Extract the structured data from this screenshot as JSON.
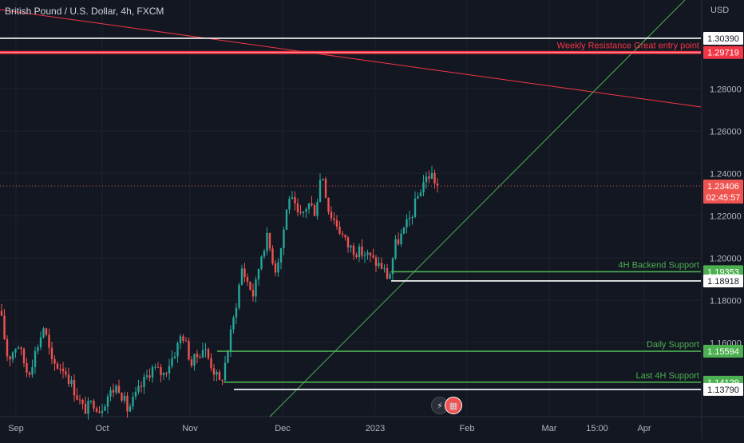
{
  "header": {
    "title": "British Pound / U.S. Dollar, 4h, FXCM",
    "currency": "USD"
  },
  "toolbar": {
    "flash_icon": "lightning-icon",
    "calendar_icon": "economic-calendar-icon"
  },
  "chart_data": {
    "type": "candlestick",
    "y_axis": {
      "ylim": [
        1.125,
        1.322
      ],
      "ticks": [
        1.28,
        1.26,
        1.24,
        1.22,
        1.2,
        1.18,
        1.16
      ],
      "tick_labels": [
        "1.28000",
        "1.26000",
        "1.24000",
        "1.22000",
        "1.20000",
        "1.18000",
        "1.16000"
      ]
    },
    "x_axis": {
      "labels": [
        "Sep",
        "Oct",
        "Nov",
        "Dec",
        "2023",
        "Feb",
        "Mar",
        "15:00",
        "Apr"
      ]
    },
    "last_price": {
      "value": 1.23406,
      "label": "1.23406",
      "countdown": "02:45:57",
      "color": "#ef5350"
    },
    "levels": [
      {
        "price": 1.3039,
        "label": "1.30390",
        "color": "#ffffff",
        "annotation": ""
      },
      {
        "price": 1.29719,
        "label": "1.29719",
        "color": "#f23645",
        "annotation": "Weekly Resistance Great entry point"
      },
      {
        "price": 1.19353,
        "label": "1.19353",
        "color": "#4caf50",
        "annotation": "4H Backend Support"
      },
      {
        "price": 1.18918,
        "label": "1.18918",
        "color": "#ffffff",
        "annotation": ""
      },
      {
        "price": 1.15594,
        "label": "1.15594",
        "color": "#4caf50",
        "annotation": "Daily Support"
      },
      {
        "price": 1.14129,
        "label": "1.14129",
        "color": "#4caf50",
        "annotation": "Last 4H Support"
      },
      {
        "price": 1.1379,
        "label": "1.13790",
        "color": "#ffffff",
        "annotation": ""
      }
    ],
    "path": [
      [
        1.175,
        0
      ],
      [
        1.152,
        10
      ],
      [
        1.16,
        22
      ],
      [
        1.145,
        35
      ],
      [
        1.162,
        50
      ],
      [
        1.168,
        55
      ],
      [
        1.15,
        65
      ],
      [
        1.148,
        80
      ],
      [
        1.136,
        95
      ],
      [
        1.128,
        105
      ],
      [
        1.132,
        118
      ],
      [
        1.128,
        125
      ],
      [
        1.135,
        135
      ],
      [
        1.14,
        148
      ],
      [
        1.128,
        160
      ],
      [
        1.138,
        175
      ],
      [
        1.148,
        190
      ],
      [
        1.145,
        205
      ],
      [
        1.158,
        222
      ],
      [
        1.165,
        228
      ],
      [
        1.15,
        240
      ],
      [
        1.158,
        255
      ],
      [
        1.145,
        270
      ],
      [
        1.14,
        276
      ],
      [
        1.152,
        283
      ],
      [
        1.172,
        293
      ],
      [
        1.195,
        303
      ],
      [
        1.182,
        318
      ],
      [
        1.2,
        326
      ],
      [
        1.21,
        334
      ],
      [
        1.195,
        345
      ],
      [
        1.205,
        352
      ],
      [
        1.23,
        362
      ],
      [
        1.218,
        375
      ],
      [
        1.226,
        386
      ],
      [
        1.222,
        395
      ],
      [
        1.242,
        403
      ],
      [
        1.222,
        412
      ],
      [
        1.216,
        422
      ],
      [
        1.206,
        435
      ],
      [
        1.203,
        448
      ],
      [
        1.202,
        458
      ],
      [
        1.198,
        470
      ],
      [
        1.196,
        478
      ],
      [
        1.19,
        487
      ],
      [
        1.206,
        495
      ],
      [
        1.212,
        505
      ],
      [
        1.22,
        515
      ],
      [
        1.236,
        530
      ],
      [
        1.24,
        540
      ],
      [
        1.234,
        548
      ]
    ]
  }
}
